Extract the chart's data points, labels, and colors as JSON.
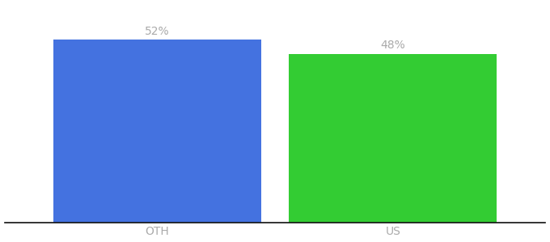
{
  "categories": [
    "OTH",
    "US"
  ],
  "values": [
    52,
    48
  ],
  "bar_colors": [
    "#4472e0",
    "#33cc33"
  ],
  "label_texts": [
    "52%",
    "48%"
  ],
  "label_color": "#aaaaaa",
  "ylim": [
    0,
    62
  ],
  "background_color": "#ffffff",
  "tick_label_color": "#aaaaaa",
  "bar_width": 0.75,
  "bar_spacing": 0.85,
  "label_fontsize": 10,
  "tick_fontsize": 10,
  "bottom_spine_color": "#111111"
}
